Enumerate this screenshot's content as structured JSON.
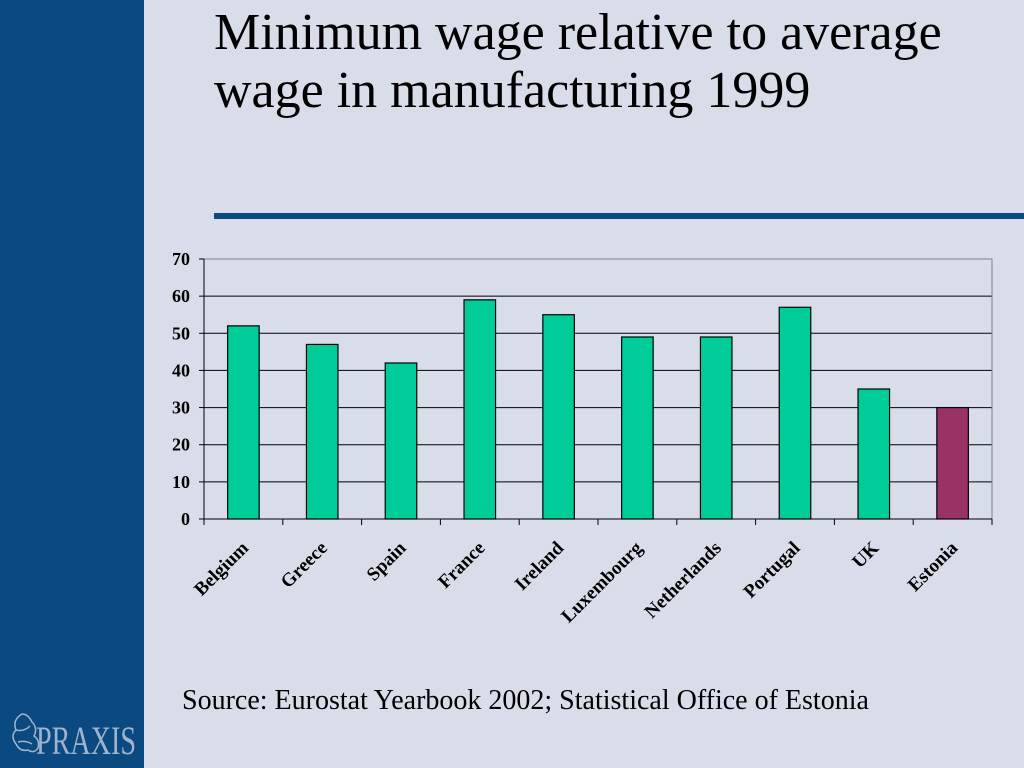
{
  "slide": {
    "title": "Minimum wage relative to average wage in manufacturing 1999",
    "source": "Source: Eurostat Yearbook 2002; Statistical Office of Estonia",
    "logo_text": "PRAXIS"
  },
  "colors": {
    "sidebar": "#0b4a80",
    "background": "#d9dde9",
    "bar_default": "#00cc99",
    "bar_highlight": "#993366"
  },
  "chart_data": {
    "type": "bar",
    "title": "",
    "xlabel": "",
    "ylabel": "",
    "categories": [
      "Belgium",
      "Greece",
      "Spain",
      "France",
      "Ireland",
      "Luxembourg",
      "Netherlands",
      "Portugal",
      "UK",
      "Estonia"
    ],
    "values": [
      52,
      47,
      42,
      59,
      55,
      49,
      49,
      57,
      35,
      30
    ],
    "highlight": [
      "Estonia"
    ],
    "ylim": [
      0,
      70
    ],
    "yticks": [
      0,
      10,
      20,
      30,
      40,
      50,
      60,
      70
    ],
    "grid": true,
    "legend": "none"
  }
}
